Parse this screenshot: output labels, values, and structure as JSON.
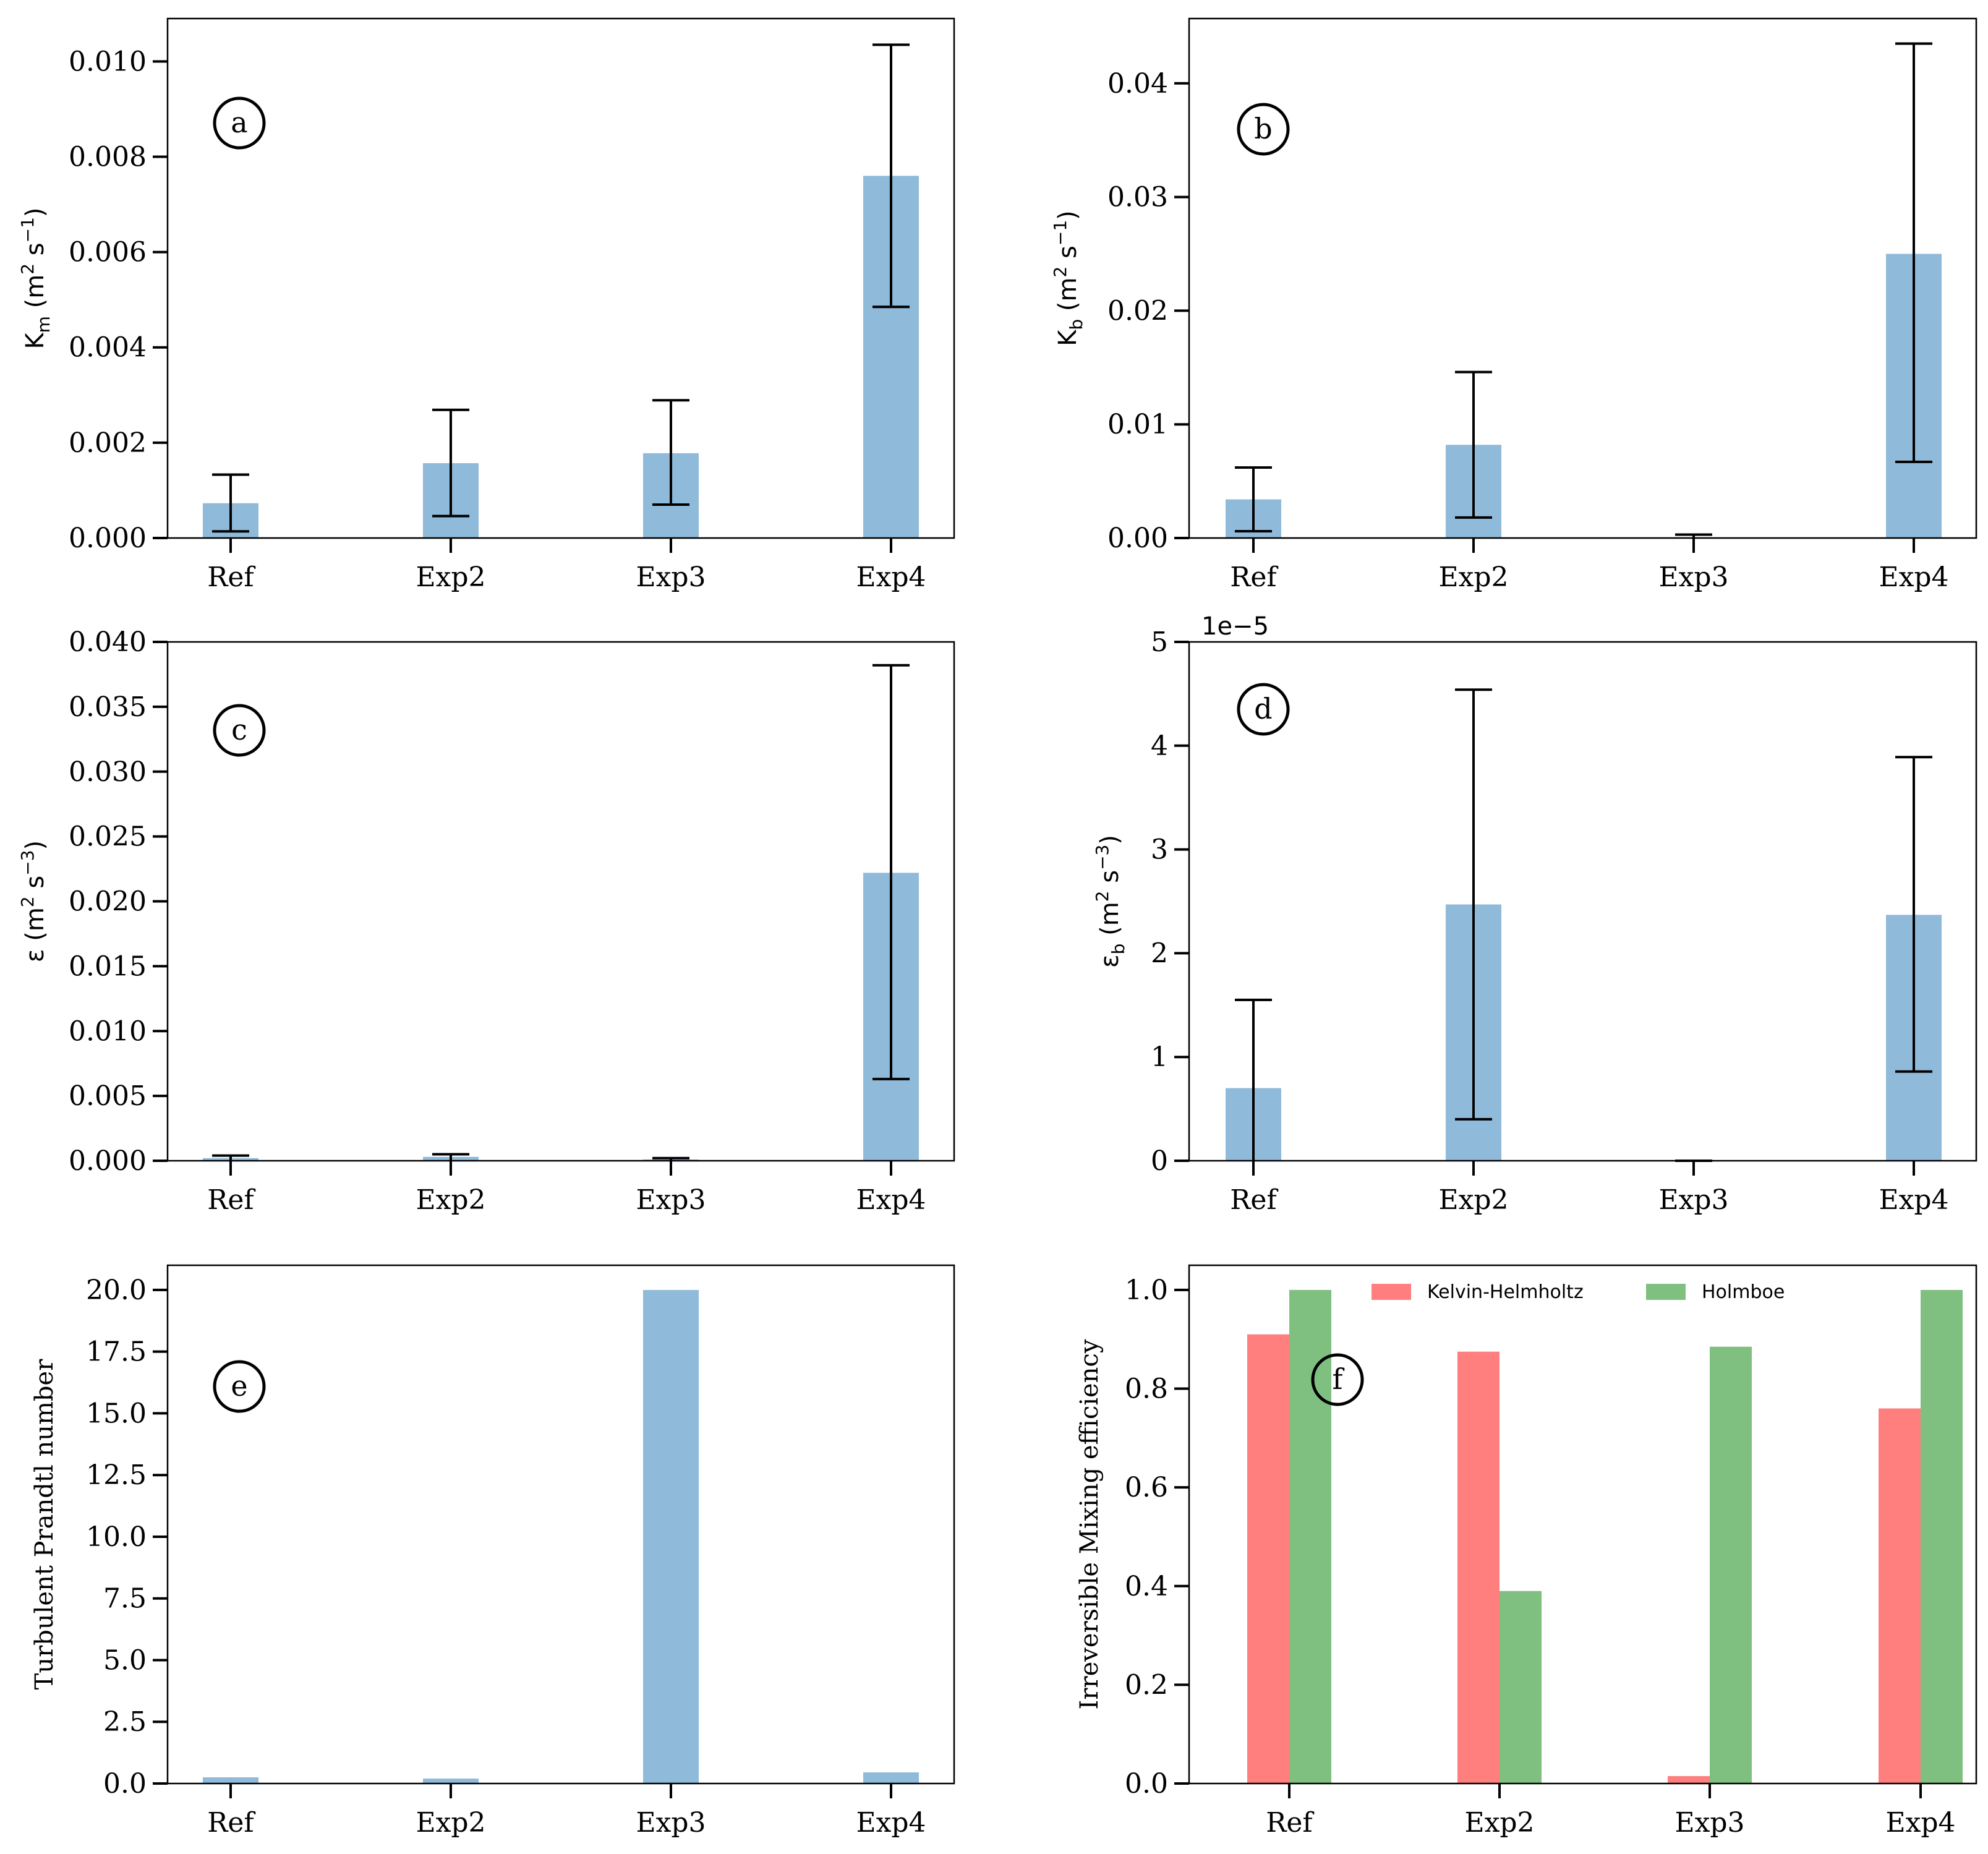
{
  "colors": {
    "bar": "#8fbad9",
    "kh": "#ff7f7f",
    "holmboe": "#7fbf7f",
    "error": "#000000"
  },
  "chart_data": [
    {
      "id": "a",
      "type": "bar",
      "panel_label": "a",
      "categories": [
        "Ref",
        "Exp2",
        "Exp3",
        "Exp4"
      ],
      "values": [
        0.00073,
        0.00157,
        0.00178,
        0.0076
      ],
      "err_low": [
        0.00014,
        0.00046,
        0.0007,
        0.00485
      ],
      "err_high": [
        0.00133,
        0.00269,
        0.00289,
        0.01035
      ],
      "ylabel": "K_m (m^2 s^-1)",
      "ylabel_main": "K",
      "ylabel_sub": "m",
      "ylabel_unit": "(m",
      "ylabel_exp": "-1",
      "ylim": [
        0,
        0.0109
      ],
      "yticks": [
        0,
        0.002,
        0.004,
        0.006,
        0.008,
        0.01
      ],
      "ytick_labels": [
        "0.000",
        "0.002",
        "0.004",
        "0.006",
        "0.008",
        "0.010"
      ]
    },
    {
      "id": "b",
      "type": "bar",
      "panel_label": "b",
      "categories": [
        "Ref",
        "Exp2",
        "Exp3",
        "Exp4"
      ],
      "values": [
        0.0034,
        0.0082,
        0.0,
        0.025
      ],
      "err_low": [
        0.0006,
        0.0018,
        0.0,
        0.0067
      ],
      "err_high": [
        0.0062,
        0.0146,
        0.0003,
        0.0435
      ],
      "ylabel": "K_b (m^2 s^-1)",
      "ylabel_main": "K",
      "ylabel_sub": "b",
      "ylabel_unit": "(m",
      "ylabel_exp": "-1",
      "ylim": [
        0,
        0.0457
      ],
      "yticks": [
        0,
        0.01,
        0.02,
        0.03,
        0.04
      ],
      "ytick_labels": [
        "0.00",
        "0.01",
        "0.02",
        "0.03",
        "0.04"
      ]
    },
    {
      "id": "c",
      "type": "bar",
      "panel_label": "c",
      "categories": [
        "Ref",
        "Exp2",
        "Exp3",
        "Exp4"
      ],
      "values": [
        0.0002,
        0.0003,
        0.0001,
        0.0222
      ],
      "err_low": [
        0.0,
        0.0,
        0.0,
        0.0063
      ],
      "err_high": [
        0.0004,
        0.0005,
        0.0002,
        0.0382
      ],
      "ylabel": "ε (m^2 s^-3)",
      "ylabel_main": "ε",
      "ylabel_sub": "",
      "ylabel_unit": "(m",
      "ylabel_exp": "-3",
      "ylim": [
        0,
        0.04
      ],
      "yticks": [
        0,
        0.005,
        0.01,
        0.015,
        0.02,
        0.025,
        0.03,
        0.035,
        0.04
      ],
      "ytick_labels": [
        "0.000",
        "0.005",
        "0.010",
        "0.015",
        "0.020",
        "0.025",
        "0.030",
        "0.035",
        "0.040"
      ]
    },
    {
      "id": "d",
      "type": "bar",
      "panel_label": "d",
      "offset_label": "1e−5",
      "categories": [
        "Ref",
        "Exp2",
        "Exp3",
        "Exp4"
      ],
      "values": [
        0.7,
        2.47,
        0.0,
        2.37
      ],
      "err_low": [
        0.0,
        0.4,
        0.0,
        0.86
      ],
      "err_high": [
        1.55,
        4.54,
        0.0,
        3.89
      ],
      "ylabel": "ε_b (m^2 s^-3)",
      "ylabel_main": "ε",
      "ylabel_sub": "b",
      "ylabel_unit": "(m",
      "ylabel_exp": "-3",
      "ylim": [
        0,
        5
      ],
      "yticks": [
        0,
        1,
        2,
        3,
        4,
        5
      ],
      "ytick_labels": [
        "0",
        "1",
        "2",
        "3",
        "4",
        "5"
      ]
    },
    {
      "id": "e",
      "type": "bar",
      "panel_label": "e",
      "categories": [
        "Ref",
        "Exp2",
        "Exp3",
        "Exp4"
      ],
      "values": [
        0.25,
        0.2,
        20.0,
        0.45
      ],
      "ylabel": "Turbulent Prandtl number",
      "ylim": [
        0,
        21
      ],
      "yticks": [
        0,
        2.5,
        5,
        7.5,
        10,
        12.5,
        15,
        17.5,
        20
      ],
      "ytick_labels": [
        "0.0",
        "2.5",
        "5.0",
        "7.5",
        "10.0",
        "12.5",
        "15.0",
        "17.5",
        "20.0"
      ]
    },
    {
      "id": "f",
      "type": "bar",
      "panel_label": "f",
      "categories": [
        "Ref",
        "Exp2",
        "Exp3",
        "Exp4"
      ],
      "series": [
        {
          "name": "Kelvin-Helmholtz",
          "values": [
            0.91,
            0.875,
            0.015,
            0.76
          ]
        },
        {
          "name": "Holmboe",
          "values": [
            1.0,
            0.39,
            0.885,
            1.0
          ]
        }
      ],
      "legend_position": "top",
      "ylabel": "Irreversible Mixing efficiency",
      "ylim": [
        0,
        1.05
      ],
      "yticks": [
        0,
        0.2,
        0.4,
        0.6,
        0.8,
        1.0
      ],
      "ytick_labels": [
        "0.0",
        "0.2",
        "0.4",
        "0.6",
        "0.8",
        "1.0"
      ]
    }
  ]
}
